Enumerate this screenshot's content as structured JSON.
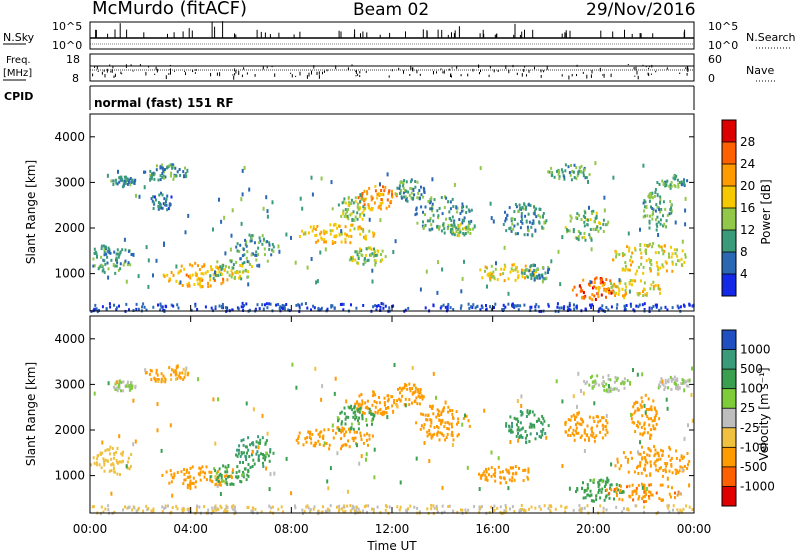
{
  "header": {
    "site": "McMurdo (fitACF)",
    "beam": "Beam 02",
    "date": "29/Nov/2016"
  },
  "top_panels": {
    "noise": {
      "left_label": "N.Sky",
      "left_ticks": [
        "10^5",
        "10^0"
      ],
      "right_label": "N.Search",
      "right_ticks": [
        "10^5",
        "10^0"
      ]
    },
    "freq": {
      "left_label_line1": "Freq.",
      "left_label_line2": "[MHz]",
      "left_ticks": [
        "18",
        "8"
      ],
      "right_label": "Nave",
      "right_ticks": [
        "60",
        "0"
      ]
    },
    "cpid": {
      "label": "CPID",
      "mode_text": "normal (fast) 151 RF"
    }
  },
  "chart_data": [
    {
      "type": "heatmap",
      "panel": "power",
      "ylabel": "Slant Range [km]",
      "ylim": [
        180,
        4500
      ],
      "yticks": [
        1000,
        2000,
        3000,
        4000
      ],
      "colorbar_label": "Power [dB]",
      "colorbar_ticks": [
        "28",
        "24",
        "20",
        "16",
        "12",
        "8",
        "4"
      ],
      "colorbar_colors": [
        "#dd0000",
        "#ff6000",
        "#ff9b00",
        "#f5c800",
        "#92c84a",
        "#3a9b7a",
        "#2b68b4",
        "#1428e8"
      ],
      "colorbar_range": [
        0,
        30
      ],
      "blobs": [
        {
          "t": 1.3,
          "r": 3050,
          "w": 0.5,
          "h": 120,
          "v": 8
        },
        {
          "t": 3.0,
          "r": 3250,
          "w": 0.9,
          "h": 180,
          "v": 9
        },
        {
          "t": 2.8,
          "r": 2600,
          "w": 0.5,
          "h": 200,
          "v": 7
        },
        {
          "t": 0.8,
          "r": 1350,
          "w": 0.9,
          "h": 320,
          "v": 9
        },
        {
          "t": 4.3,
          "r": 1000,
          "w": 1.5,
          "h": 260,
          "v": 19
        },
        {
          "t": 5.5,
          "r": 1100,
          "w": 1.0,
          "h": 220,
          "v": 13
        },
        {
          "t": 6.5,
          "r": 1550,
          "w": 0.8,
          "h": 350,
          "v": 9
        },
        {
          "t": 9.7,
          "r": 1900,
          "w": 1.6,
          "h": 220,
          "v": 18
        },
        {
          "t": 11.4,
          "r": 2700,
          "w": 0.8,
          "h": 260,
          "v": 21
        },
        {
          "t": 10.4,
          "r": 2450,
          "w": 0.8,
          "h": 260,
          "v": 14
        },
        {
          "t": 12.7,
          "r": 2850,
          "w": 0.6,
          "h": 250,
          "v": 9
        },
        {
          "t": 11.0,
          "r": 1400,
          "w": 0.8,
          "h": 200,
          "v": 13
        },
        {
          "t": 14.0,
          "r": 2300,
          "w": 1.2,
          "h": 420,
          "v": 9
        },
        {
          "t": 14.7,
          "r": 2000,
          "w": 0.5,
          "h": 150,
          "v": 12
        },
        {
          "t": 16.5,
          "r": 1050,
          "w": 1.2,
          "h": 200,
          "v": 16
        },
        {
          "t": 17.7,
          "r": 1050,
          "w": 0.6,
          "h": 180,
          "v": 9
        },
        {
          "t": 17.2,
          "r": 2200,
          "w": 0.9,
          "h": 380,
          "v": 9
        },
        {
          "t": 19.7,
          "r": 2100,
          "w": 0.9,
          "h": 350,
          "v": 12
        },
        {
          "t": 19.0,
          "r": 3250,
          "w": 0.9,
          "h": 180,
          "v": 10
        },
        {
          "t": 22.2,
          "r": 1350,
          "w": 1.6,
          "h": 350,
          "v": 16
        },
        {
          "t": 22.5,
          "r": 2450,
          "w": 0.6,
          "h": 500,
          "v": 11
        },
        {
          "t": 23.1,
          "r": 3050,
          "w": 0.6,
          "h": 150,
          "v": 9
        },
        {
          "t": 20.0,
          "r": 700,
          "w": 0.9,
          "h": 250,
          "v": 24
        },
        {
          "t": 21.4,
          "r": 700,
          "w": 1.4,
          "h": 200,
          "v": 17
        }
      ]
    },
    {
      "type": "heatmap",
      "panel": "velocity",
      "xlabel": "Time UT",
      "ylabel": "Slant Range [km]",
      "ylim": [
        180,
        4500
      ],
      "yticks": [
        1000,
        2000,
        3000,
        4000
      ],
      "xlim": [
        0,
        24
      ],
      "xticks": [
        "00:00",
        "04:00",
        "08:00",
        "12:00",
        "16:00",
        "20:00",
        "00:00"
      ],
      "colorbar_label": "Velocity [m s⁻¹]",
      "colorbar_ticks": [
        "1000",
        "500",
        "100",
        "25",
        "-25",
        "-100",
        "-500",
        "-1000"
      ],
      "colorbar_colors": [
        "#1f4fc0",
        "#3a9b7a",
        "#3aa050",
        "#7fcc3a",
        "#bdbdbd",
        "#f0c040",
        "#ff9b00",
        "#ff6000",
        "#e00000"
      ],
      "colorbar_range": [
        -1200,
        1200
      ],
      "blobs": [
        {
          "t": 1.3,
          "r": 3000,
          "w": 0.5,
          "h": 120,
          "v": 20
        },
        {
          "t": 3.0,
          "r": 3250,
          "w": 0.9,
          "h": 180,
          "v": -120
        },
        {
          "t": 0.8,
          "r": 1350,
          "w": 0.9,
          "h": 320,
          "v": -60
        },
        {
          "t": 4.2,
          "r": 1000,
          "w": 1.4,
          "h": 260,
          "v": -200
        },
        {
          "t": 5.5,
          "r": 1050,
          "w": 0.8,
          "h": 220,
          "v": 150
        },
        {
          "t": 6.5,
          "r": 1550,
          "w": 0.8,
          "h": 350,
          "v": 500
        },
        {
          "t": 9.7,
          "r": 1850,
          "w": 1.7,
          "h": 240,
          "v": -200
        },
        {
          "t": 11.3,
          "r": 2600,
          "w": 0.9,
          "h": 280,
          "v": -250
        },
        {
          "t": 10.5,
          "r": 2300,
          "w": 0.9,
          "h": 260,
          "v": 130
        },
        {
          "t": 12.7,
          "r": 2800,
          "w": 0.6,
          "h": 250,
          "v": -150
        },
        {
          "t": 14.0,
          "r": 2200,
          "w": 1.1,
          "h": 420,
          "v": -300
        },
        {
          "t": 16.5,
          "r": 1050,
          "w": 1.1,
          "h": 200,
          "v": -250
        },
        {
          "t": 17.3,
          "r": 2100,
          "w": 0.9,
          "h": 360,
          "v": 450
        },
        {
          "t": 19.7,
          "r": 2100,
          "w": 0.9,
          "h": 350,
          "v": -300
        },
        {
          "t": 20.5,
          "r": 3050,
          "w": 1.0,
          "h": 200,
          "v": 30
        },
        {
          "t": 22.3,
          "r": 1350,
          "w": 1.6,
          "h": 350,
          "v": -300
        },
        {
          "t": 22.0,
          "r": 2300,
          "w": 0.6,
          "h": 500,
          "v": -250
        },
        {
          "t": 23.1,
          "r": 3050,
          "w": 0.7,
          "h": 150,
          "v": 10
        },
        {
          "t": 20.2,
          "r": 700,
          "w": 1.0,
          "h": 250,
          "v": 150
        },
        {
          "t": 22.0,
          "r": 650,
          "w": 1.6,
          "h": 200,
          "v": -400
        }
      ]
    }
  ]
}
